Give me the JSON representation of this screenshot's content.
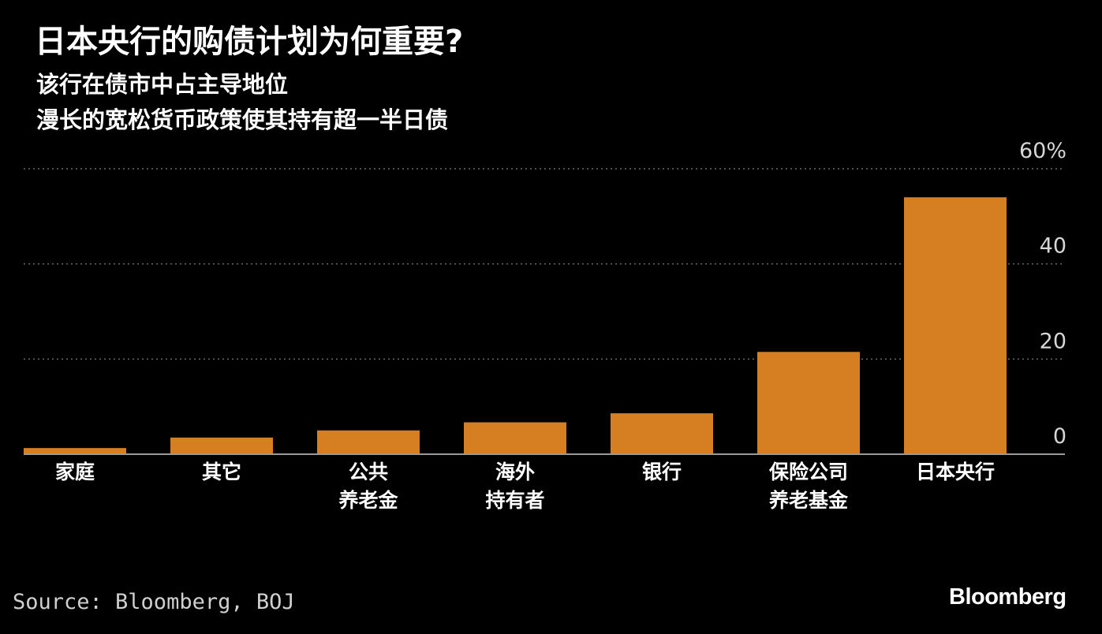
{
  "header": {
    "title": "日本央行的购债计划为何重要?",
    "subtitle_1": "该行在债市中占主导地位",
    "subtitle_2": "漫长的宽松货币政策使其持有超一半日债"
  },
  "footer": {
    "source": "Source: Bloomberg, BOJ",
    "brand": "Bloomberg"
  },
  "colors": {
    "background": "#000000",
    "bar": "#d57f22",
    "grid": "#6a6a6a",
    "axis_text": "#d6d6d6",
    "category_text": "#ffffff"
  },
  "chart_data": {
    "type": "bar",
    "title": "日本央行的购债计划为何重要?",
    "subtitle": [
      "该行在债市中占主导地位",
      "漫长的宽松货币政策使其持有超一半日债"
    ],
    "categories": [
      [
        "家庭"
      ],
      [
        "其它"
      ],
      [
        "公共",
        "养老金"
      ],
      [
        "海外",
        "持有者"
      ],
      [
        "银行"
      ],
      [
        "保险公司",
        "养老基金"
      ],
      [
        "日本央行"
      ]
    ],
    "values": [
      1.3,
      3.5,
      5.0,
      6.7,
      8.6,
      21.5,
      54.0
    ],
    "ylim": [
      0,
      60
    ],
    "yticks": [
      0,
      20,
      40,
      60
    ],
    "ytick_labels": [
      "0",
      "20",
      "40",
      "60%"
    ],
    "y_axis_position": "right",
    "grid": true,
    "grid_style": "dotted",
    "legend": "none",
    "xlabel": "",
    "ylabel": ""
  }
}
